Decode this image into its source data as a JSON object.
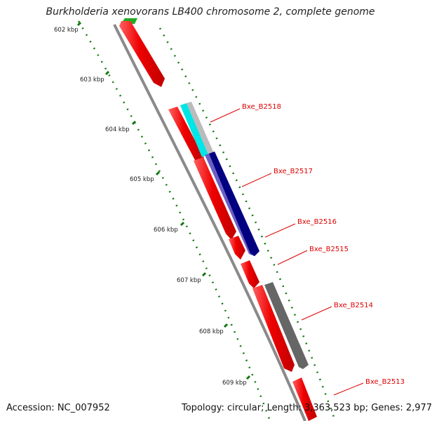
{
  "title": "Burkholderia xenovorans LB400 chromosome 2, complete genome",
  "footer": {
    "accession": "Accession: NC_007952",
    "summary": "Topology: circular; Length: 3,363,523 bp; Genes: 2,977"
  },
  "ticks": [
    "602 kbp",
    "603 kbp",
    "604 kbp",
    "605 kbp",
    "606 kbp",
    "607 kbp",
    "608 kbp",
    "609 kbp"
  ],
  "genes": [
    "Bxe_B2518",
    "Bxe_B2517",
    "Bxe_B2516",
    "Bxe_B2515",
    "Bxe_B2514",
    "Bxe_B2513"
  ],
  "colors": {
    "cds_red": "#ee0000",
    "backbone": "#8a8a8a",
    "gc_dots": "#117711",
    "label": "#dd0000",
    "cyan": "#00e5e5",
    "navy": "#000080",
    "purple": "#6b5fc4",
    "gray": "#777777",
    "green": "#22aa22"
  }
}
